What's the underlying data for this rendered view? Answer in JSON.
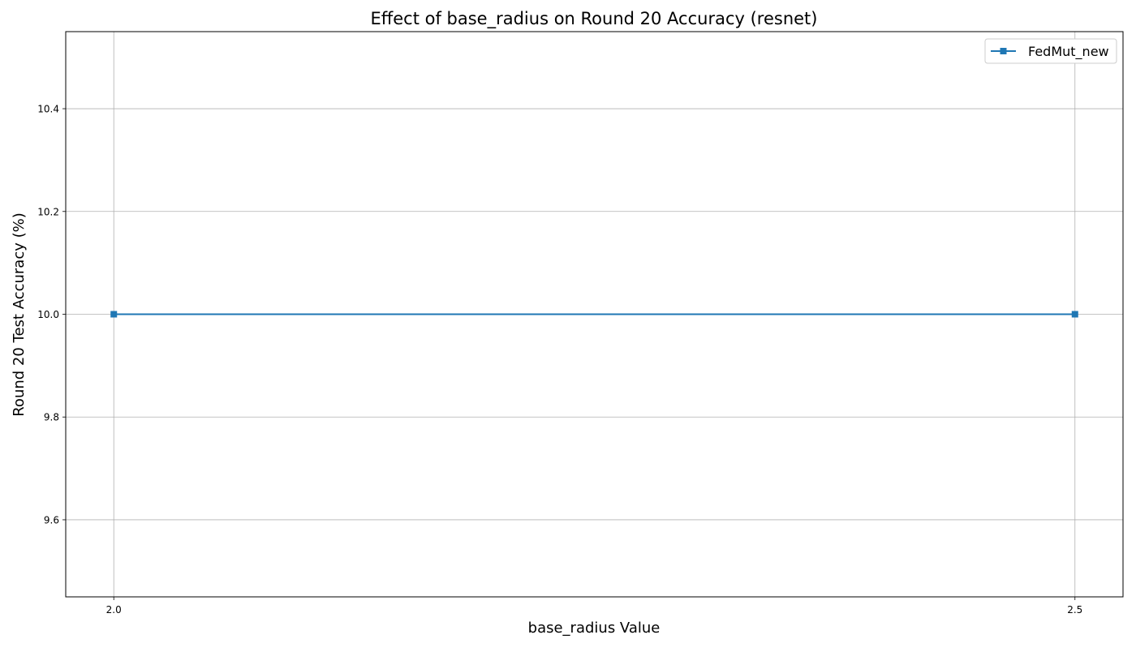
{
  "chart_data": {
    "type": "line",
    "title": "Effect of base_radius on Round 20 Accuracy (resnet)",
    "xlabel": "base_radius Value",
    "ylabel": "Round 20 Test Accuracy (%)",
    "x": [
      2.0,
      2.5
    ],
    "x_tick_labels": [
      "2.0",
      "2.5"
    ],
    "xlim": [
      1.975,
      2.525
    ],
    "ylim": [
      9.45,
      10.55
    ],
    "y_ticks": [
      9.6,
      9.8,
      10.0,
      10.2,
      10.4
    ],
    "y_tick_labels": [
      "9.6",
      "9.8",
      "10.0",
      "10.2",
      "10.4"
    ],
    "grid": true,
    "legend_position": "top-right",
    "series": [
      {
        "name": "FedMut_new",
        "values": [
          10.0,
          10.0
        ],
        "color": "#1f77b4",
        "marker": "square"
      }
    ]
  }
}
